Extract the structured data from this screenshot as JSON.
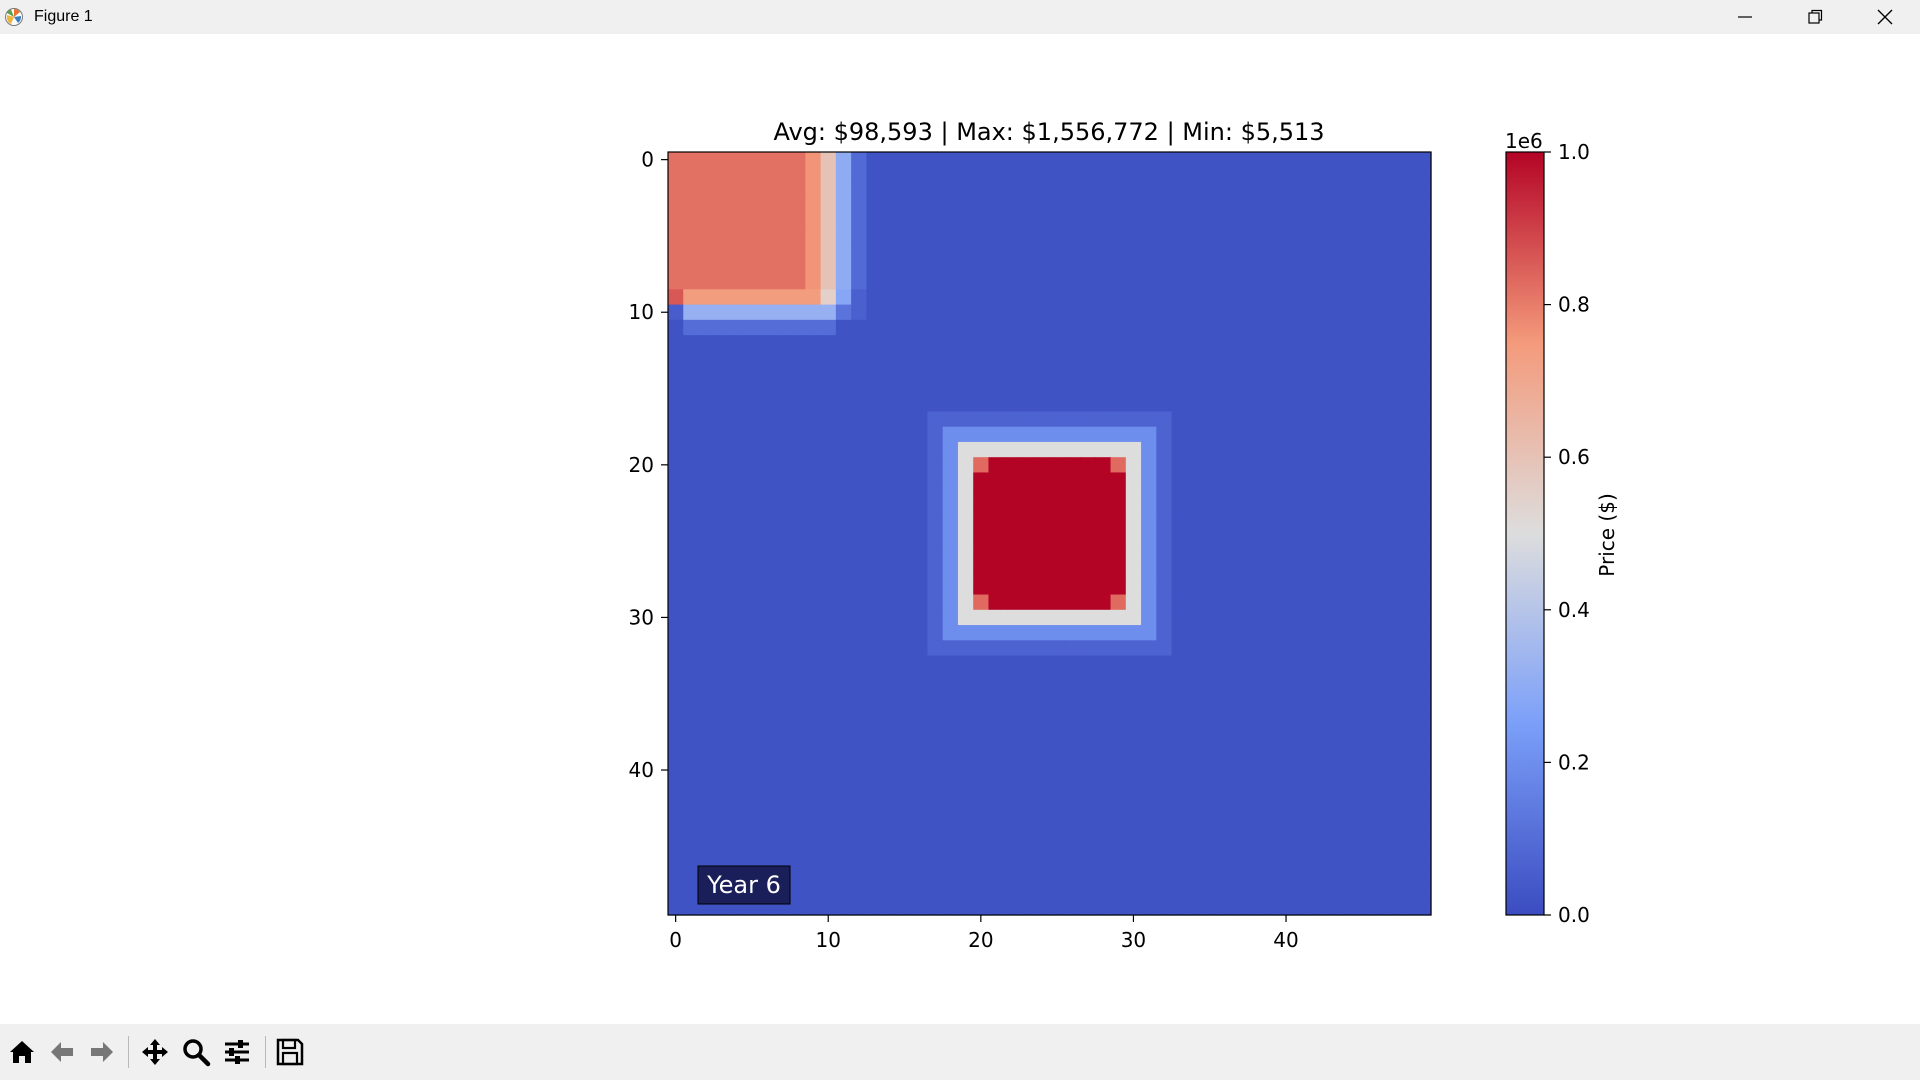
{
  "window": {
    "title": "Figure 1",
    "icon": "matplotlib-icon",
    "controls": [
      "minimize-icon",
      "restore-icon",
      "close-icon"
    ]
  },
  "figure": {
    "title": "Avg: $98,593 | Max: $1,556,772 | Min: $5,513",
    "annotation": "Year 6",
    "annotation_bg": "#1a1f5a"
  },
  "chart_data": {
    "type": "heatmap",
    "colormap": "coolwarm",
    "rows": 50,
    "cols": 50,
    "x_ticks": [
      "0",
      "10",
      "20",
      "30",
      "40"
    ],
    "y_ticks": [
      "0",
      "10",
      "20",
      "30",
      "40"
    ],
    "vmin": 0,
    "vmax": 1000000,
    "colorbar": {
      "label": "Price ($)",
      "offset_text": "1e6",
      "ticks": [
        "0.0",
        "0.2",
        "0.4",
        "0.6",
        "0.8",
        "1.0"
      ]
    },
    "regions": [
      {
        "name": "corner-block",
        "rows": [
          0,
          9
        ],
        "cols": [
          0,
          9
        ],
        "value": 0.82
      },
      {
        "name": "center-block",
        "rows": [
          20,
          29
        ],
        "cols": [
          20,
          29
        ],
        "value": 1.0
      }
    ],
    "background_value": 0.02
  },
  "toolbar": {
    "buttons": [
      "home-icon",
      "back-icon",
      "forward-icon",
      "pan-icon",
      "zoom-icon",
      "configure-subplots-icon",
      "save-icon"
    ]
  }
}
